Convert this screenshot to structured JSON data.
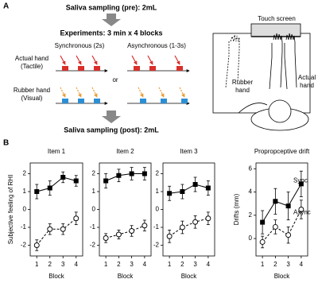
{
  "panel_a": {
    "label": "A",
    "pre": "Saliva sampling (pre): 2mL",
    "experiments": "Experiments: 3 min x 4 blocks",
    "sync": "Synchronous (2s)",
    "async": "Asynchronous (1-3s)",
    "actual_hand": [
      "Actual hand",
      "(Tactile)"
    ],
    "rubber_hand": [
      "Rubber hand",
      "(Visual)"
    ],
    "or": "or",
    "post": "Saliva sampling (post): 2mL",
    "touch_screen": "Touch screen",
    "rubber_hand_label": [
      "Rubber",
      "hand"
    ],
    "actual_hand_label": [
      "Actual",
      "hand"
    ]
  },
  "panel_b": {
    "label": "B"
  },
  "chart_data": [
    {
      "type": "line",
      "title": "Item 1",
      "xlabel": "Block",
      "ylabel": "Subjective feeling of RHI",
      "x": [
        1,
        2,
        3,
        4
      ],
      "xlim": [
        0.5,
        4.5
      ],
      "xticks": [
        1,
        2,
        3,
        4
      ],
      "ylim": [
        -2.6,
        2.6
      ],
      "yticks": [
        -2,
        -1,
        0,
        1,
        2
      ],
      "series": [
        {
          "color": "#000000",
          "line_style": "solid",
          "marker": "square",
          "values": [
            1.0,
            1.2,
            1.8,
            1.6
          ],
          "errors": [
            0.4,
            0.4,
            0.3,
            0.3
          ]
        },
        {
          "color": "#000000",
          "line_style": "dashed",
          "marker": "circle",
          "values": [
            -2.0,
            -1.1,
            -1.1,
            -0.5
          ],
          "errors": [
            0.3,
            0.3,
            0.3,
            0.35
          ]
        }
      ]
    },
    {
      "type": "line",
      "title": "Item 2",
      "xlabel": "Block",
      "x": [
        1,
        2,
        3,
        4
      ],
      "xlim": [
        0.5,
        4.5
      ],
      "xticks": [
        1,
        2,
        3,
        4
      ],
      "ylim": [
        -2.6,
        2.6
      ],
      "yticks": [
        -2,
        -1,
        0,
        1,
        2
      ],
      "series": [
        {
          "color": "#000000",
          "line_style": "solid",
          "marker": "square",
          "values": [
            1.6,
            1.9,
            2.0,
            2.0
          ],
          "errors": [
            0.4,
            0.35,
            0.35,
            0.35
          ]
        },
        {
          "color": "#000000",
          "line_style": "dashed",
          "marker": "circle",
          "values": [
            -1.6,
            -1.4,
            -1.2,
            -0.9
          ],
          "errors": [
            0.25,
            0.25,
            0.3,
            0.3
          ]
        }
      ]
    },
    {
      "type": "line",
      "title": "Item 3",
      "xlabel": "Block",
      "x": [
        1,
        2,
        3,
        4
      ],
      "xlim": [
        0.5,
        4.5
      ],
      "xticks": [
        1,
        2,
        3,
        4
      ],
      "ylim": [
        -2.6,
        2.6
      ],
      "yticks": [
        -2,
        -1,
        0,
        1,
        2
      ],
      "series": [
        {
          "color": "#000000",
          "line_style": "solid",
          "marker": "square",
          "values": [
            0.9,
            1.0,
            1.4,
            1.2
          ],
          "errors": [
            0.4,
            0.4,
            0.4,
            0.4
          ]
        },
        {
          "color": "#000000",
          "line_style": "dashed",
          "marker": "circle",
          "values": [
            -1.5,
            -1.0,
            -0.7,
            -0.5
          ],
          "errors": [
            0.35,
            0.35,
            0.35,
            0.35
          ]
        }
      ]
    },
    {
      "type": "line",
      "title": "Propropceptive drift",
      "xlabel": "Block",
      "ylabel": "Drifts (mm)",
      "x": [
        1,
        2,
        3,
        4
      ],
      "xlim": [
        0.5,
        4.5
      ],
      "xticks": [
        1,
        2,
        3,
        4
      ],
      "ylim": [
        -1.5,
        6.5
      ],
      "yticks": [
        0,
        2,
        4,
        6
      ],
      "series": [
        {
          "name": "Sync",
          "color": "#000000",
          "line_style": "solid",
          "marker": "square",
          "values": [
            1.4,
            3.2,
            2.8,
            4.7
          ],
          "errors": [
            1.0,
            1.1,
            1.2,
            1.1
          ]
        },
        {
          "name": "Async",
          "color": "#000000",
          "line_style": "dashed",
          "marker": "circle",
          "values": [
            -0.3,
            1.0,
            0.3,
            2.5
          ],
          "errors": [
            0.5,
            0.6,
            0.7,
            0.8
          ]
        }
      ]
    }
  ]
}
